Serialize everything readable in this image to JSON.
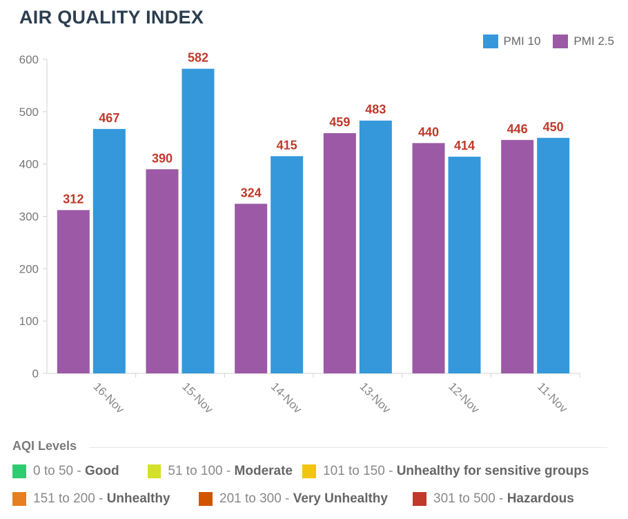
{
  "title": "AIR QUALITY INDEX",
  "legend": [
    {
      "label": "PMI 10",
      "color": "#3498db"
    },
    {
      "label": "PMI 2.5",
      "color": "#9b59a6"
    }
  ],
  "chart_data": {
    "type": "bar",
    "categories": [
      "16-Nov",
      "15-Nov",
      "14-Nov",
      "13-Nov",
      "12-Nov",
      "11-Nov"
    ],
    "series": [
      {
        "name": "PMI 2.5",
        "color": "#9b59a6",
        "values": [
          312,
          390,
          324,
          459,
          440,
          446
        ]
      },
      {
        "name": "PMI 10",
        "color": "#3498db",
        "values": [
          467,
          582,
          415,
          483,
          414,
          450
        ]
      }
    ],
    "ylim": [
      0,
      600
    ],
    "yticks": [
      0,
      100,
      200,
      300,
      400,
      500,
      600
    ],
    "label_color": "#c0392b",
    "legend_position": "top-right",
    "grid": false
  },
  "aqi_levels": {
    "title": "AQI Levels",
    "items": [
      {
        "range": "0 to 50",
        "sep": " - ",
        "name": "Good",
        "color": "#2ecc71"
      },
      {
        "range": "51 to 100",
        "sep": " - ",
        "name": "Moderate",
        "color": "#d4e02a"
      },
      {
        "range": "101 to 150",
        "sep": " - ",
        "name": "Unhealthy for sensitive groups",
        "color": "#f1c40f"
      },
      {
        "range": "151 to 200",
        "sep": " - ",
        "name": "Unhealthy",
        "color": "#e67e22"
      },
      {
        "range": "201 to 300",
        "sep": " - ",
        "name": "Very Unhealthy",
        "color": "#d35400"
      },
      {
        "range": "301 to 500",
        "sep": " - ",
        "name": "Hazardous",
        "color": "#c0392b"
      }
    ]
  }
}
